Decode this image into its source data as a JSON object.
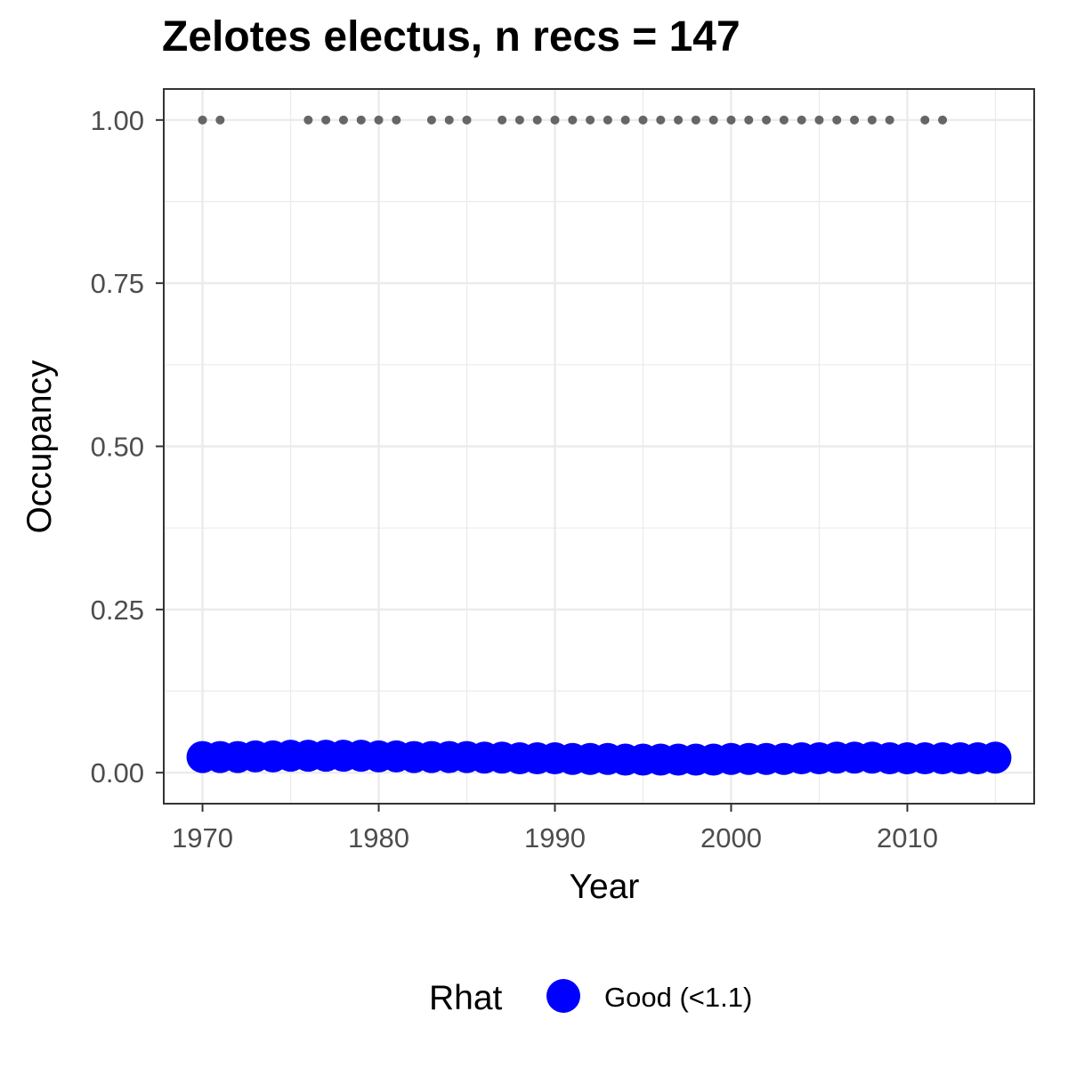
{
  "chart_data": {
    "type": "scatter",
    "title": "Zelotes electus, n recs = 147",
    "xlabel": "Year",
    "ylabel": "Occupancy",
    "xlim": [
      1967.8,
      2017.2
    ],
    "ylim": [
      -0.0475,
      1.0475
    ],
    "x_ticks": [
      1970,
      1980,
      1990,
      2000,
      2010
    ],
    "x_tick_labels": [
      "1970",
      "1980",
      "1990",
      "2000",
      "2010"
    ],
    "y_ticks": [
      0,
      0.25,
      0.5,
      0.75,
      1.0
    ],
    "y_tick_labels": [
      "0.00",
      "0.25",
      "0.50",
      "0.75",
      "1.00"
    ],
    "grid": true,
    "legend": {
      "title": "Rhat",
      "placement": "bottom",
      "entries": [
        {
          "label": "Good (<1.1)",
          "color": "#0000ff"
        }
      ]
    },
    "colors": {
      "estimate": "#0000ff",
      "records": "#666666",
      "grid": "#ebebeb",
      "panel_border": "#333333"
    },
    "series": [
      {
        "name": "Good (<1.1)",
        "marker": "large-circle",
        "x": [
          1970,
          1971,
          1972,
          1973,
          1974,
          1975,
          1976,
          1977,
          1978,
          1979,
          1980,
          1981,
          1982,
          1983,
          1984,
          1985,
          1986,
          1987,
          1988,
          1989,
          1990,
          1991,
          1992,
          1993,
          1994,
          1995,
          1996,
          1997,
          1998,
          1999,
          2000,
          2001,
          2002,
          2003,
          2004,
          2005,
          2006,
          2007,
          2008,
          2009,
          2010,
          2011,
          2012,
          2013,
          2014,
          2015
        ],
        "y": [
          0.024,
          0.024,
          0.024,
          0.025,
          0.025,
          0.026,
          0.026,
          0.026,
          0.026,
          0.026,
          0.025,
          0.025,
          0.024,
          0.024,
          0.024,
          0.024,
          0.023,
          0.023,
          0.022,
          0.022,
          0.022,
          0.021,
          0.021,
          0.021,
          0.02,
          0.02,
          0.02,
          0.02,
          0.02,
          0.02,
          0.021,
          0.021,
          0.021,
          0.021,
          0.022,
          0.022,
          0.023,
          0.023,
          0.023,
          0.022,
          0.022,
          0.022,
          0.022,
          0.022,
          0.022,
          0.023
        ]
      },
      {
        "marker": "small-dot",
        "x": [
          1970,
          1971,
          1976,
          1977,
          1978,
          1979,
          1980,
          1981,
          1983,
          1984,
          1985,
          1987,
          1988,
          1989,
          1990,
          1991,
          1992,
          1993,
          1994,
          1995,
          1996,
          1997,
          1998,
          1999,
          2000,
          2001,
          2002,
          2003,
          2004,
          2005,
          2006,
          2007,
          2008,
          2009,
          2011,
          2012
        ],
        "y": [
          1,
          1,
          1,
          1,
          1,
          1,
          1,
          1,
          1,
          1,
          1,
          1,
          1,
          1,
          1,
          1,
          1,
          1,
          1,
          1,
          1,
          1,
          1,
          1,
          1,
          1,
          1,
          1,
          1,
          1,
          1,
          1,
          1,
          1,
          1,
          1
        ]
      }
    ]
  }
}
